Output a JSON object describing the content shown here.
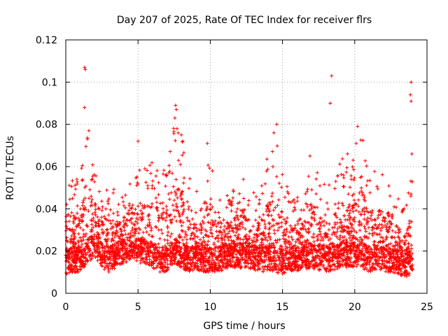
{
  "chart_data": {
    "type": "scatter",
    "title": "Day 207 of 2025, Rate Of TEC Index for receiver flrs",
    "xlabel": "GPS time / hours",
    "ylabel": "ROTI / TECUs",
    "xlim": [
      0,
      25
    ],
    "ylim": [
      0,
      0.12
    ],
    "x_ticks": [
      0,
      5,
      10,
      15,
      20,
      25
    ],
    "y_ticks": [
      0,
      0.02,
      0.04,
      0.06,
      0.08,
      0.1,
      0.12
    ],
    "x_tick_labels": [
      "0",
      "5",
      "10",
      "15",
      "20",
      "25"
    ],
    "y_tick_labels": [
      "0",
      "0.02",
      "0.04",
      "0.06",
      "0.08",
      "0.1",
      "0.12"
    ],
    "grid": true,
    "marker": "plus",
    "color": "#ff0000",
    "envelope": {
      "x": [
        0,
        0.5,
        1,
        1.5,
        2,
        2.5,
        3,
        3.5,
        4,
        4.5,
        5,
        5.5,
        6,
        6.5,
        7,
        7.5,
        8,
        8.5,
        9,
        9.5,
        10,
        10.5,
        11,
        11.5,
        12,
        12.5,
        13,
        13.5,
        14,
        14.5,
        15,
        15.5,
        16,
        16.5,
        17,
        17.5,
        18,
        18.5,
        19,
        19.5,
        20,
        20.5,
        21,
        21.5,
        22,
        22.5,
        23,
        23.5,
        24
      ],
      "median": [
        0.015,
        0.016,
        0.015,
        0.02,
        0.022,
        0.018,
        0.016,
        0.018,
        0.02,
        0.022,
        0.02,
        0.02,
        0.018,
        0.016,
        0.016,
        0.02,
        0.018,
        0.016,
        0.017,
        0.016,
        0.016,
        0.016,
        0.017,
        0.018,
        0.018,
        0.018,
        0.017,
        0.016,
        0.017,
        0.016,
        0.015,
        0.016,
        0.016,
        0.017,
        0.018,
        0.017,
        0.016,
        0.016,
        0.018,
        0.018,
        0.018,
        0.018,
        0.016,
        0.017,
        0.016,
        0.016,
        0.015,
        0.014,
        0.014
      ],
      "peak": [
        0.06,
        0.053,
        0.06,
        0.075,
        0.06,
        0.055,
        0.05,
        0.05,
        0.05,
        0.056,
        0.06,
        0.06,
        0.063,
        0.06,
        0.06,
        0.08,
        0.075,
        0.056,
        0.05,
        0.05,
        0.07,
        0.05,
        0.05,
        0.05,
        0.058,
        0.056,
        0.05,
        0.05,
        0.07,
        0.075,
        0.06,
        0.046,
        0.05,
        0.05,
        0.064,
        0.06,
        0.05,
        0.06,
        0.066,
        0.063,
        0.065,
        0.075,
        0.06,
        0.057,
        0.06,
        0.056,
        0.045,
        0.04,
        0.06
      ]
    },
    "outliers": [
      {
        "x": 1.3,
        "y": 0.107
      },
      {
        "x": 1.35,
        "y": 0.106
      },
      {
        "x": 1.3,
        "y": 0.088
      },
      {
        "x": 1.6,
        "y": 0.077
      },
      {
        "x": 1.5,
        "y": 0.073
      },
      {
        "x": 7.6,
        "y": 0.089
      },
      {
        "x": 7.65,
        "y": 0.087
      },
      {
        "x": 7.55,
        "y": 0.083
      },
      {
        "x": 7.7,
        "y": 0.078
      },
      {
        "x": 8.0,
        "y": 0.075
      },
      {
        "x": 8.1,
        "y": 0.072
      },
      {
        "x": 5.0,
        "y": 0.072
      },
      {
        "x": 9.8,
        "y": 0.071
      },
      {
        "x": 14.6,
        "y": 0.08
      },
      {
        "x": 14.4,
        "y": 0.076
      },
      {
        "x": 18.4,
        "y": 0.103
      },
      {
        "x": 18.3,
        "y": 0.09
      },
      {
        "x": 20.2,
        "y": 0.079
      },
      {
        "x": 20.1,
        "y": 0.071
      },
      {
        "x": 23.9,
        "y": 0.1
      },
      {
        "x": 23.85,
        "y": 0.094
      },
      {
        "x": 23.9,
        "y": 0.091
      },
      {
        "x": 23.95,
        "y": 0.066
      },
      {
        "x": 23.9,
        "y": 0.047
      },
      {
        "x": 16.9,
        "y": 0.065
      },
      {
        "x": 19.5,
        "y": 0.066
      }
    ]
  }
}
